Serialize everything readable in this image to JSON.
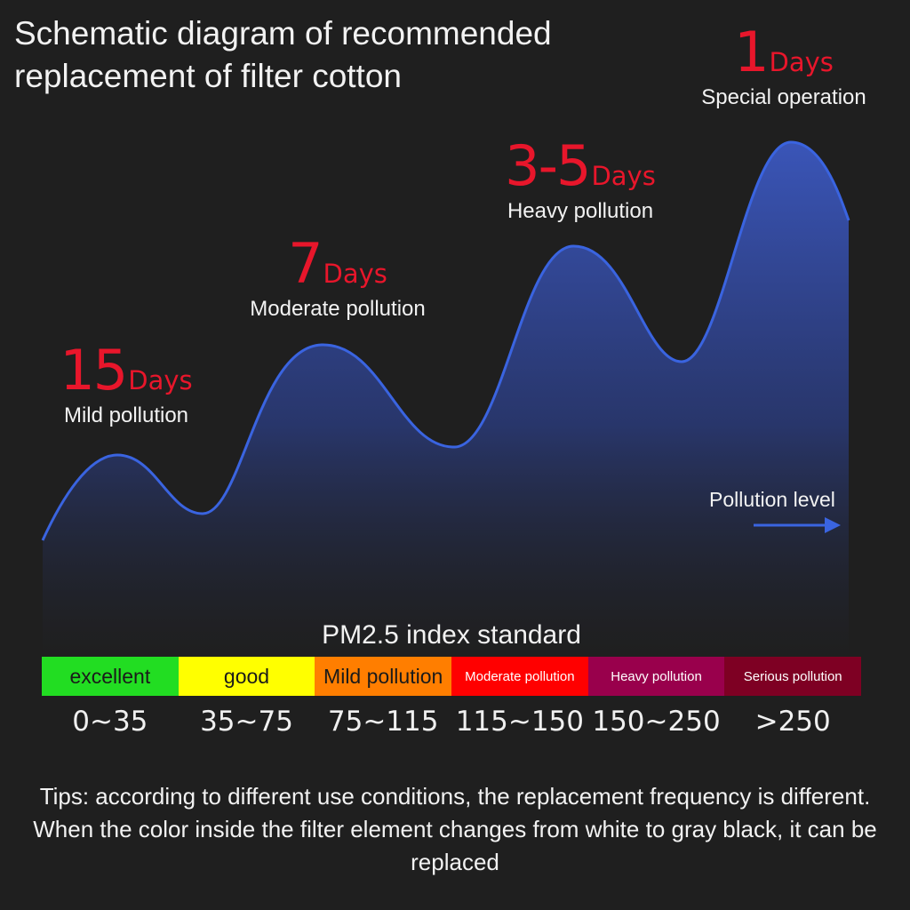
{
  "title": {
    "line1": "Schematic diagram of recommended",
    "line2": "replacement of filter cotton"
  },
  "levels": [
    {
      "days": "15",
      "unit": "Days",
      "caption": "Mild pollution"
    },
    {
      "days": "7",
      "unit": "Days",
      "caption": "Moderate pollution"
    },
    {
      "days": "3-5",
      "unit": "Days",
      "caption": "Heavy pollution"
    },
    {
      "days": "1",
      "unit": "Days",
      "caption": "Special operation"
    }
  ],
  "axis": {
    "label": "Pollution level"
  },
  "pm_title": "PM2.5 index standard",
  "scale": [
    {
      "label": "excellent",
      "range": "0~35",
      "color": "#22dd22",
      "text_color": "#1a1a1a"
    },
    {
      "label": "good",
      "range": "35~75",
      "color": "#ffff00",
      "text_color": "#1a1a1a"
    },
    {
      "label": "Mild pollution",
      "range": "75~115",
      "color": "#ff7e00",
      "text_color": "#1a1a1a"
    },
    {
      "label": "Moderate pollution",
      "range": "115~150",
      "color": "#ff0000",
      "text_color": "#ffffff"
    },
    {
      "label": "Heavy pollution",
      "range": "150~250",
      "color": "#99004c",
      "text_color": "#ffffff"
    },
    {
      "label": "Serious pollution",
      "range": ">250",
      "color": "#7e0023",
      "text_color": "#ffffff"
    }
  ],
  "tips": "Tips: according to different use conditions, the replacement frequency is different. When the color inside the filter element changes from white to gray black, it can be replaced",
  "colors": {
    "wave_line": "#3a64e0",
    "wave_fill": "#2c3f86",
    "days": "#e8162b",
    "arrow": "#3a64e0"
  }
}
